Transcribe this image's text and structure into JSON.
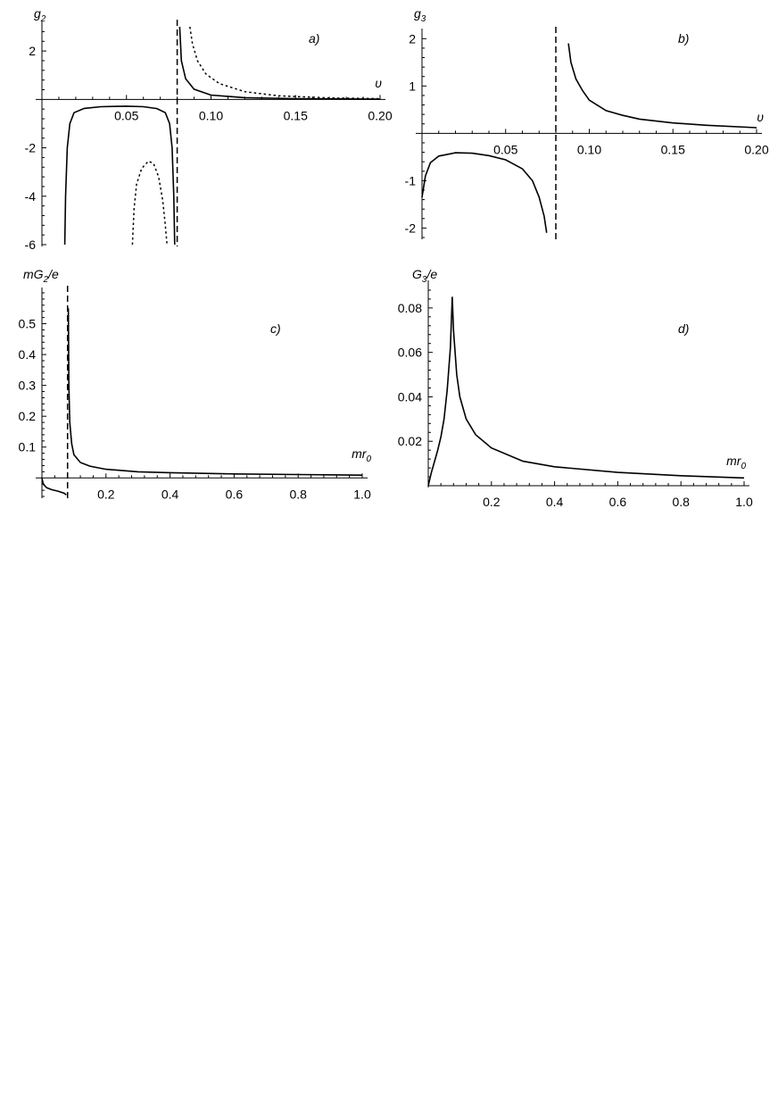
{
  "chart_data": [
    {
      "panel": "a)",
      "type": "line",
      "ylabel": "g",
      "ylabel_sub": "2",
      "xlabel": "υ",
      "xlim": [
        0,
        0.2
      ],
      "ylim": [
        -6,
        3
      ],
      "xticks": [
        0.05,
        0.1,
        0.15,
        0.2
      ],
      "xtick_labels": [
        "0.05",
        "0.10",
        "0.15",
        "0.20"
      ],
      "yticks": [
        -6,
        -4,
        -2,
        2
      ],
      "ytick_labels": [
        "-6",
        "-4",
        "-2",
        "2"
      ],
      "asymptote_x": 0.08,
      "series": [
        {
          "style": "solid",
          "points": [
            [
              0.0135,
              -6
            ],
            [
              0.014,
              -4.0
            ],
            [
              0.015,
              -2.0
            ],
            [
              0.0165,
              -1.0
            ],
            [
              0.019,
              -0.55
            ],
            [
              0.025,
              -0.37
            ],
            [
              0.035,
              -0.3
            ],
            [
              0.05,
              -0.28
            ],
            [
              0.06,
              -0.3
            ],
            [
              0.068,
              -0.38
            ],
            [
              0.073,
              -0.55
            ],
            [
              0.0755,
              -1.0
            ],
            [
              0.077,
              -2.0
            ],
            [
              0.078,
              -4.0
            ],
            [
              0.0785,
              -6
            ]
          ]
        },
        {
          "style": "solid",
          "points": [
            [
              0.0815,
              3
            ],
            [
              0.0825,
              1.6
            ],
            [
              0.085,
              0.85
            ],
            [
              0.09,
              0.42
            ],
            [
              0.1,
              0.18
            ],
            [
              0.12,
              0.07
            ],
            [
              0.15,
              0.03
            ],
            [
              0.2,
              0.01
            ]
          ]
        },
        {
          "style": "dotted",
          "points": [
            [
              0.0535,
              -6
            ],
            [
              0.0545,
              -4.5
            ],
            [
              0.056,
              -3.5
            ],
            [
              0.059,
              -2.85
            ],
            [
              0.063,
              -2.55
            ],
            [
              0.066,
              -2.65
            ],
            [
              0.069,
              -3.2
            ],
            [
              0.0715,
              -4.2
            ],
            [
              0.073,
              -5.2
            ],
            [
              0.074,
              -6
            ]
          ]
        },
        {
          "style": "dotted",
          "points": [
            [
              0.0875,
              3
            ],
            [
              0.089,
              2.3
            ],
            [
              0.092,
              1.6
            ],
            [
              0.097,
              1.05
            ],
            [
              0.105,
              0.65
            ],
            [
              0.12,
              0.32
            ],
            [
              0.14,
              0.15
            ],
            [
              0.17,
              0.06
            ],
            [
              0.2,
              0.03
            ]
          ]
        }
      ]
    },
    {
      "panel": "b)",
      "type": "line",
      "ylabel": "g",
      "ylabel_sub": "3",
      "xlabel": "υ",
      "xlim": [
        0,
        0.2
      ],
      "ylim": [
        -2.2,
        2.1
      ],
      "xticks": [
        0.05,
        0.1,
        0.15,
        0.2
      ],
      "xtick_labels": [
        "0.05",
        "0.10",
        "0.15",
        "0.20"
      ],
      "yticks": [
        -2,
        -1,
        1,
        2
      ],
      "ytick_labels": [
        "-2",
        "-1",
        "1",
        "2"
      ],
      "asymptote_x": 0.08,
      "series": [
        {
          "style": "solid",
          "points": [
            [
              0.0,
              -1.35
            ],
            [
              0.002,
              -0.9
            ],
            [
              0.005,
              -0.62
            ],
            [
              0.01,
              -0.48
            ],
            [
              0.02,
              -0.41
            ],
            [
              0.03,
              -0.42
            ],
            [
              0.04,
              -0.47
            ],
            [
              0.05,
              -0.56
            ],
            [
              0.06,
              -0.75
            ],
            [
              0.066,
              -1.0
            ],
            [
              0.07,
              -1.35
            ],
            [
              0.073,
              -1.75
            ],
            [
              0.0745,
              -2.1
            ]
          ]
        },
        {
          "style": "solid",
          "points": [
            [
              0.0875,
              1.9
            ],
            [
              0.089,
              1.5
            ],
            [
              0.092,
              1.15
            ],
            [
              0.096,
              0.9
            ],
            [
              0.1,
              0.7
            ],
            [
              0.11,
              0.48
            ],
            [
              0.12,
              0.38
            ],
            [
              0.13,
              0.3
            ],
            [
              0.15,
              0.22
            ],
            [
              0.17,
              0.17
            ],
            [
              0.2,
              0.12
            ]
          ]
        }
      ]
    },
    {
      "panel": "c)",
      "type": "line",
      "ylabel": "mG",
      "ylabel_sub": "2",
      "ylabel_suffix": "/e",
      "xlabel": "mr",
      "xlabel_sub": "0",
      "xlim": [
        0,
        1.0
      ],
      "ylim": [
        -0.06,
        0.6
      ],
      "xticks": [
        0.2,
        0.4,
        0.6,
        0.8,
        1.0
      ],
      "xtick_labels": [
        "0.2",
        "0.4",
        "0.6",
        "0.8",
        "1.0"
      ],
      "yticks": [
        0.1,
        0.2,
        0.3,
        0.4,
        0.5
      ],
      "ytick_labels": [
        "0.1",
        "0.2",
        "0.3",
        "0.4",
        "0.5"
      ],
      "asymptote_x": 0.08,
      "series": [
        {
          "style": "solid",
          "points": [
            [
              0.0,
              0.0
            ],
            [
              0.004,
              -0.02
            ],
            [
              0.015,
              -0.032
            ],
            [
              0.03,
              -0.038
            ],
            [
              0.05,
              -0.043
            ],
            [
              0.07,
              -0.05
            ],
            [
              0.076,
              -0.055
            ]
          ]
        },
        {
          "style": "solid",
          "points": [
            [
              0.0825,
              0.55
            ],
            [
              0.084,
              0.3
            ],
            [
              0.087,
              0.18
            ],
            [
              0.093,
              0.11
            ],
            [
              0.1,
              0.075
            ],
            [
              0.12,
              0.05
            ],
            [
              0.15,
              0.038
            ],
            [
              0.2,
              0.028
            ],
            [
              0.3,
              0.02
            ],
            [
              0.4,
              0.017
            ],
            [
              0.6,
              0.013
            ],
            [
              0.8,
              0.011
            ],
            [
              1.0,
              0.009
            ]
          ]
        }
      ]
    },
    {
      "panel": "d)",
      "type": "line",
      "ylabel": "G",
      "ylabel_sub": "3",
      "ylabel_suffix": "/e",
      "xlabel": "mr",
      "xlabel_sub": "0",
      "xlim": [
        0,
        1.0
      ],
      "ylim": [
        0,
        0.09
      ],
      "xticks": [
        0.2,
        0.4,
        0.6,
        0.8,
        1.0
      ],
      "xtick_labels": [
        "0.2",
        "0.4",
        "0.6",
        "0.8",
        "1.0"
      ],
      "yticks": [
        0.02,
        0.04,
        0.06,
        0.08
      ],
      "ytick_labels": [
        "0.02",
        "0.04",
        "0.06",
        "0.08"
      ],
      "asymptote_x": null,
      "series": [
        {
          "style": "solid",
          "points": [
            [
              0.0,
              0.0
            ],
            [
              0.01,
              0.006
            ],
            [
              0.02,
              0.011
            ],
            [
              0.03,
              0.016
            ],
            [
              0.04,
              0.022
            ],
            [
              0.05,
              0.03
            ],
            [
              0.06,
              0.043
            ],
            [
              0.07,
              0.062
            ],
            [
              0.076,
              0.085
            ],
            [
              0.08,
              0.07
            ],
            [
              0.09,
              0.05
            ],
            [
              0.1,
              0.04
            ],
            [
              0.12,
              0.03
            ],
            [
              0.15,
              0.023
            ],
            [
              0.2,
              0.017
            ],
            [
              0.3,
              0.011
            ],
            [
              0.4,
              0.0085
            ],
            [
              0.6,
              0.006
            ],
            [
              0.8,
              0.0045
            ],
            [
              1.0,
              0.0035
            ]
          ]
        }
      ]
    }
  ]
}
